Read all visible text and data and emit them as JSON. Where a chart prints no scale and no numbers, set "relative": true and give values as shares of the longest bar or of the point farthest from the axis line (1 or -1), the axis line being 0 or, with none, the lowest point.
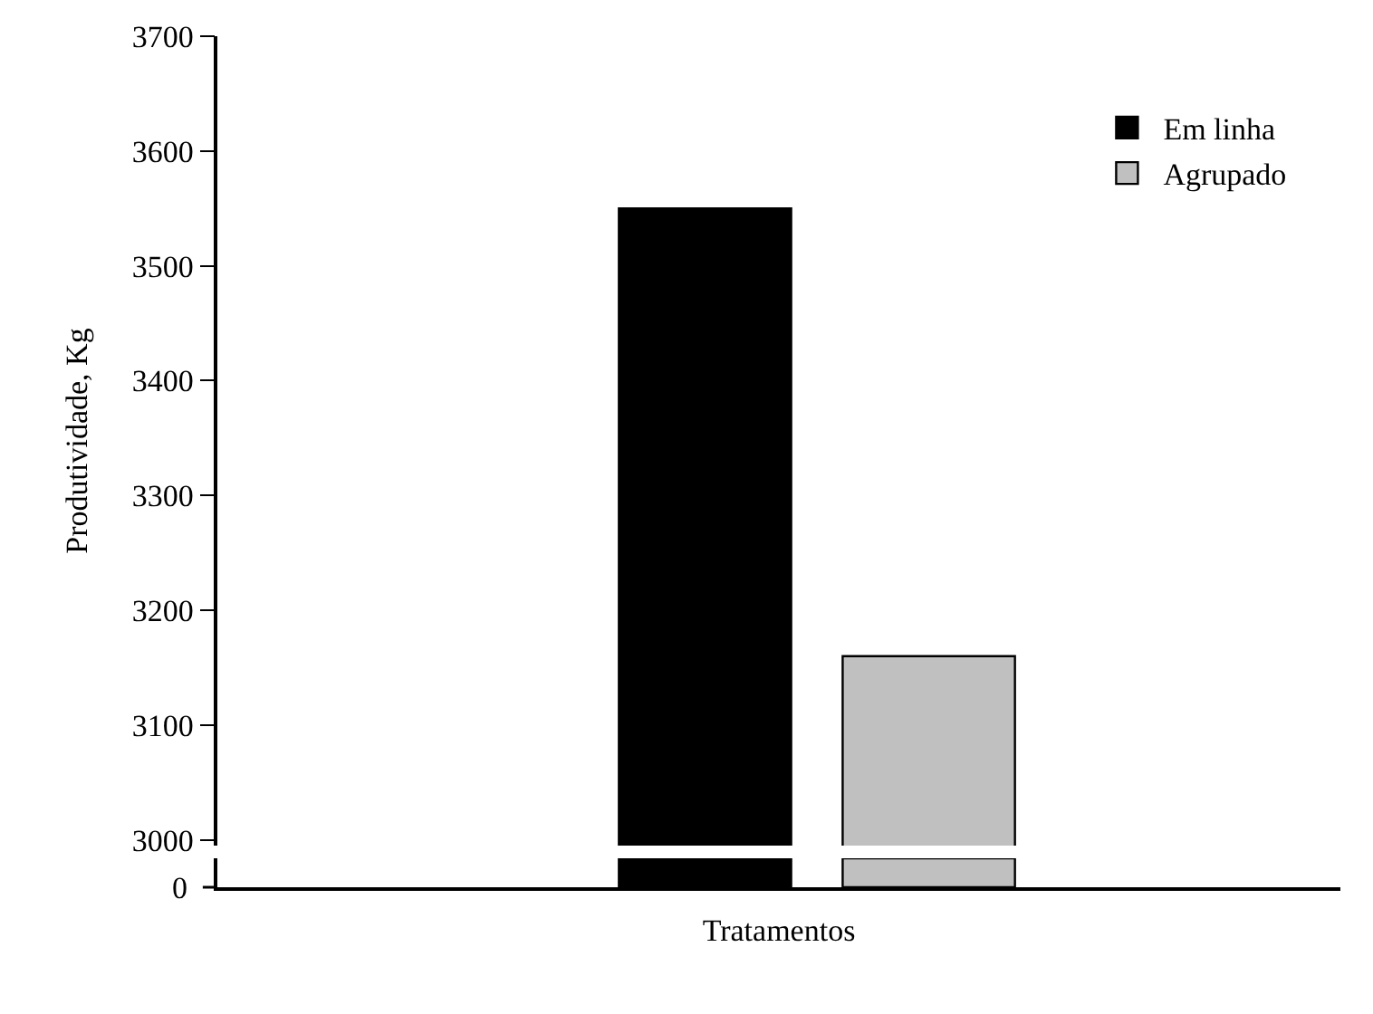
{
  "chart_data": [
    {
      "type": "bar",
      "xlabel": "Tratamentos",
      "ylabel": "Produtividade, Kg",
      "categories": [
        null
      ],
      "series": [
        {
          "name": "Em linha",
          "color": "#000000",
          "values": [
            3550
          ]
        },
        {
          "name": "Agrupado",
          "color": "#c0c0c0",
          "values": [
            3160
          ]
        }
      ],
      "ylim": [
        2995,
        3700
      ],
      "yticks": [
        3000,
        3100,
        3200,
        3300,
        3400,
        3500,
        3600,
        3700
      ],
      "legend": "top right",
      "tick_labels": "y"
    },
    {
      "type": "bar",
      "categories": [
        null
      ],
      "series": [
        {
          "color": "#000000",
          "values": [
            1
          ]
        },
        {
          "color": "#c0c0c0",
          "values": [
            1
          ]
        }
      ],
      "relative": true,
      "annotations": [
        "0"
      ]
    }
  ]
}
